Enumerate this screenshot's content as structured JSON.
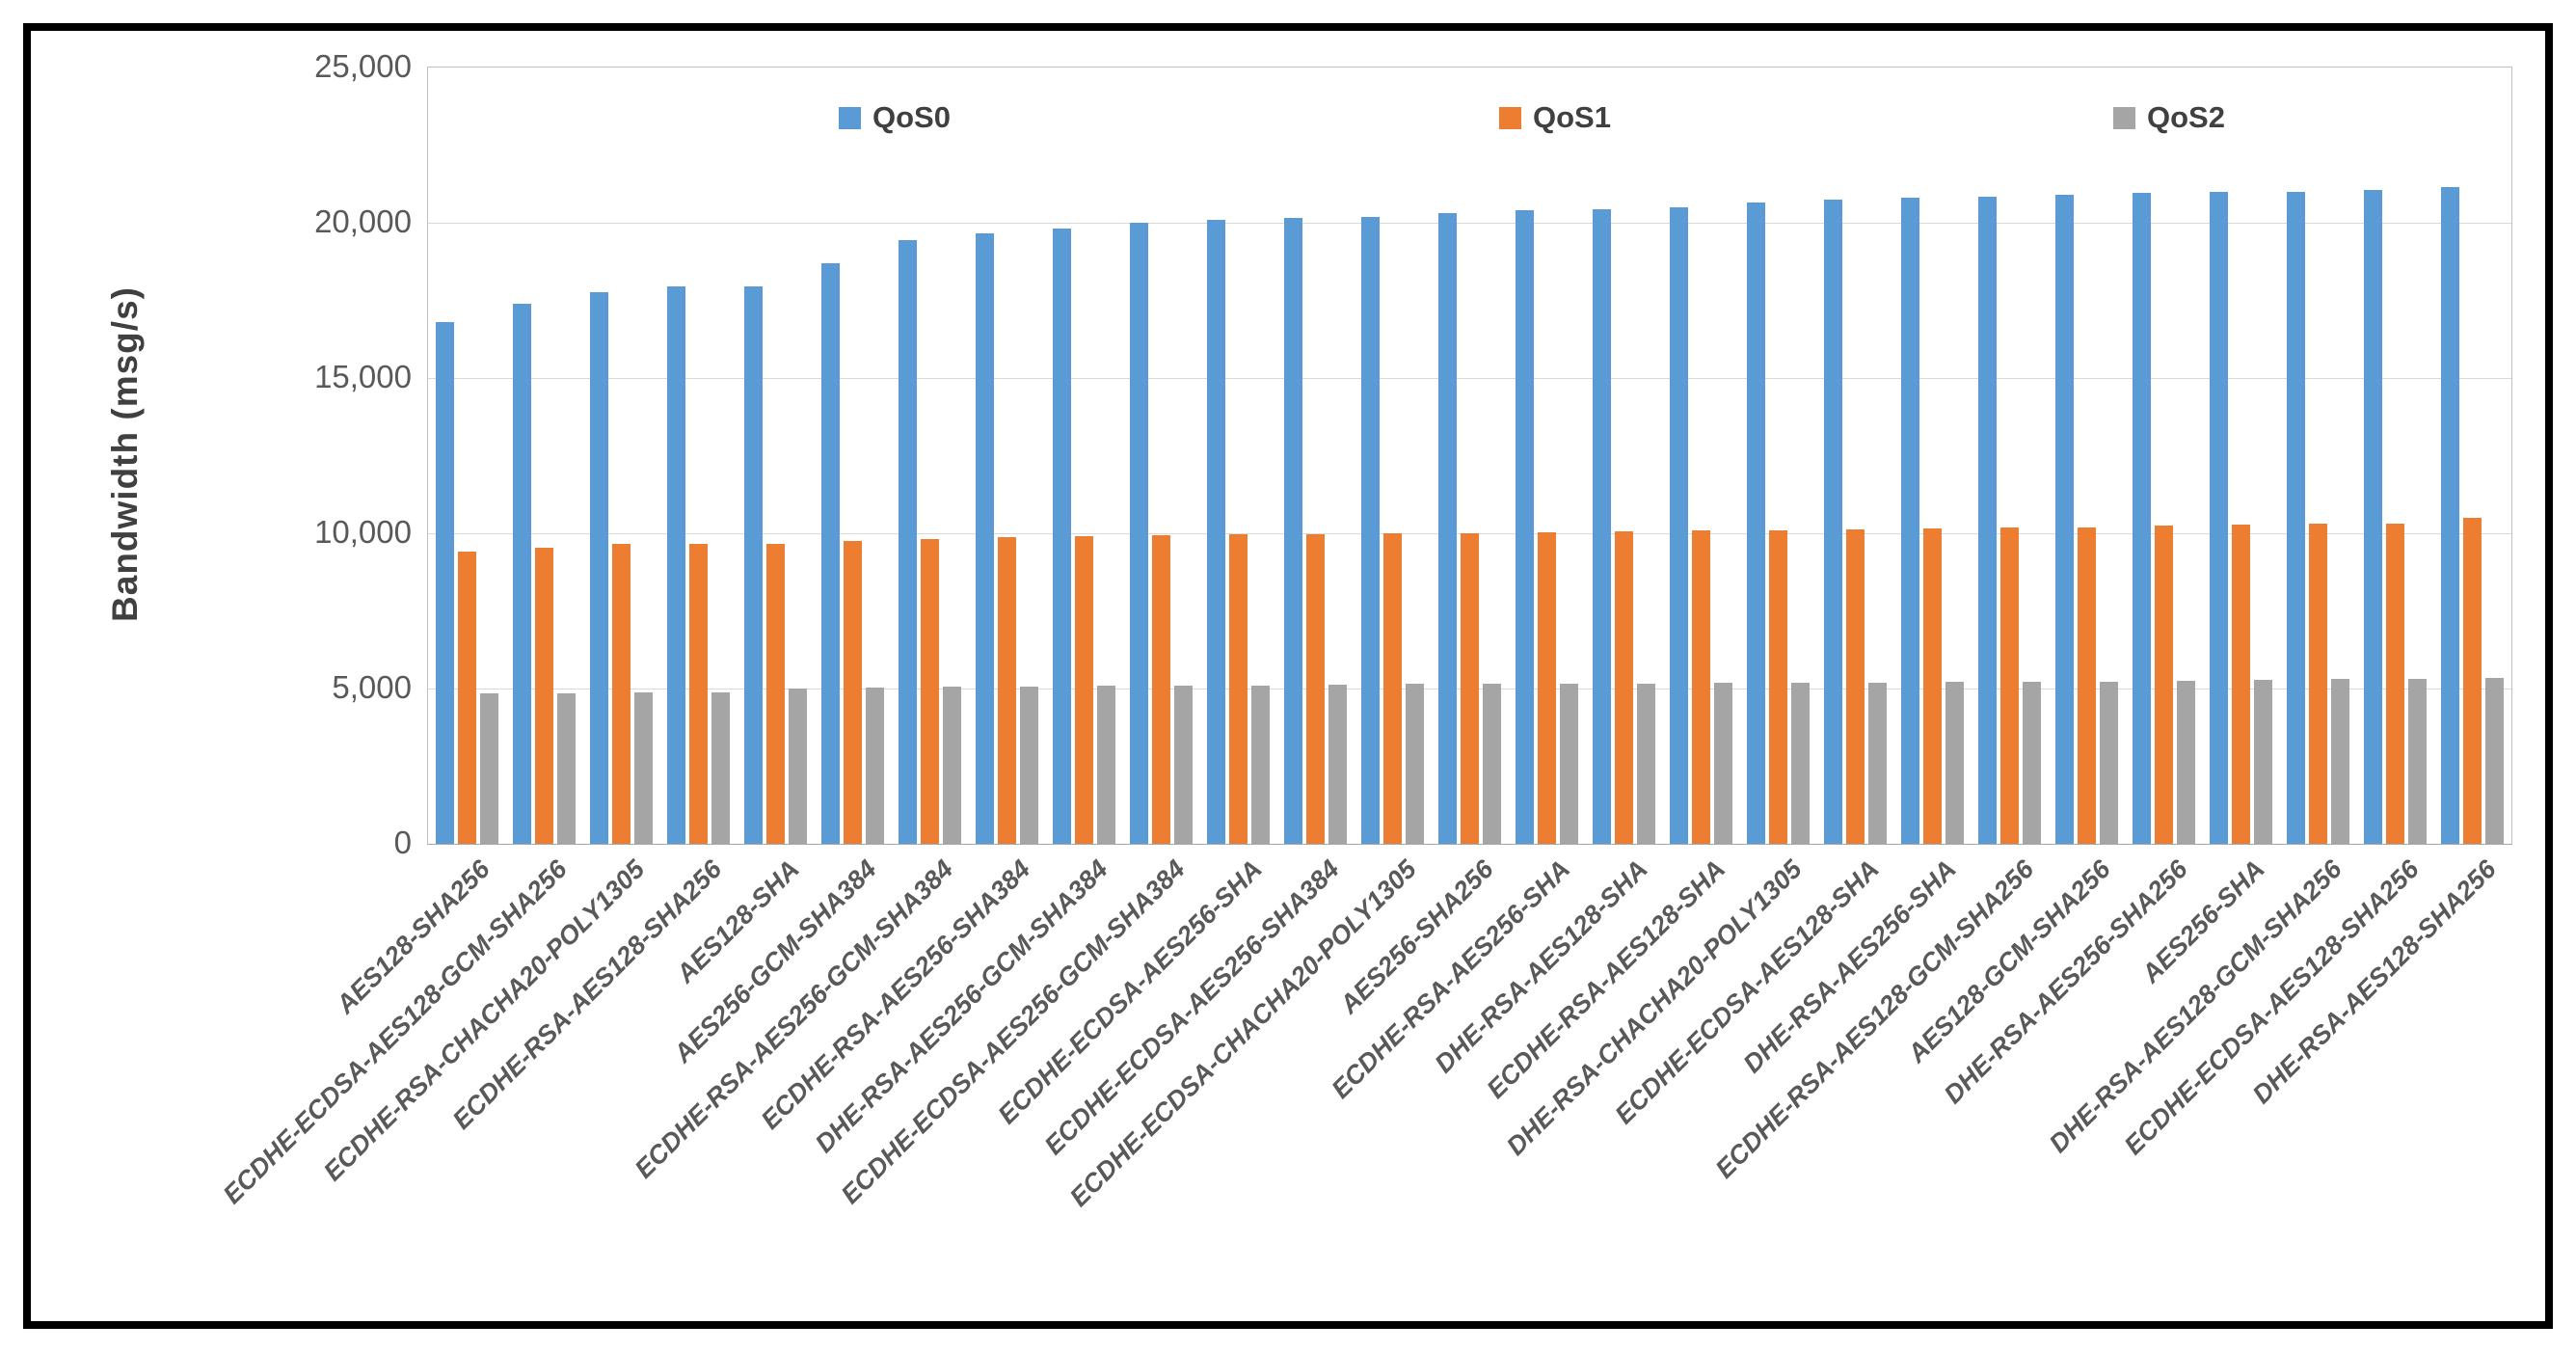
{
  "chart_data": {
    "type": "bar",
    "title": "",
    "xlabel": "",
    "ylabel": "Bandwidth (msg/s)",
    "ylim": [
      0,
      25000
    ],
    "ytick_step": 5000,
    "ytick_labels": [
      "0",
      "5,000",
      "10,000",
      "15,000",
      "20,000",
      "25,000"
    ],
    "grid": true,
    "legend_position": "top-inside-horizontal",
    "categories": [
      "AES128-SHA256",
      "ECDHE-ECDSA-AES128-GCM-SHA256",
      "ECDHE-RSA-CHACHA20-POLY1305",
      "ECDHE-RSA-AES128-SHA256",
      "AES128-SHA",
      "AES256-GCM-SHA384",
      "ECDHE-RSA-AES256-GCM-SHA384",
      "ECDHE-RSA-AES256-SHA384",
      "DHE-RSA-AES256-GCM-SHA384",
      "ECDHE-ECDSA-AES256-GCM-SHA384",
      "ECDHE-ECDSA-AES256-SHA",
      "ECDHE-ECDSA-AES256-SHA384",
      "ECDHE-ECDSA-CHACHA20-POLY1305",
      "AES256-SHA256",
      "ECDHE-RSA-AES256-SHA",
      "DHE-RSA-AES128-SHA",
      "ECDHE-RSA-AES128-SHA",
      "DHE-RSA-CHACHA20-POLY1305",
      "ECDHE-ECDSA-AES128-SHA",
      "DHE-RSA-AES256-SHA",
      "ECDHE-RSA-AES128-GCM-SHA256",
      "AES128-GCM-SHA256",
      "DHE-RSA-AES256-SHA256",
      "AES256-SHA",
      "DHE-RSA-AES128-GCM-SHA256",
      "ECDHE-ECDSA-AES128-SHA256",
      "DHE-RSA-AES128-SHA256"
    ],
    "series": [
      {
        "name": "QoS0",
        "color": "#5B9BD5",
        "values": [
          16800,
          17400,
          17750,
          17950,
          17950,
          18700,
          19450,
          19650,
          19800,
          20000,
          20100,
          20150,
          20200,
          20300,
          20400,
          20450,
          20500,
          20650,
          20750,
          20800,
          20850,
          20900,
          20950,
          21000,
          21000,
          21050,
          21150
        ]
      },
      {
        "name": "QoS1",
        "color": "#ED7D31",
        "values": [
          9400,
          9550,
          9650,
          9660,
          9660,
          9750,
          9800,
          9870,
          9900,
          9940,
          9960,
          9980,
          10000,
          10010,
          10020,
          10060,
          10080,
          10080,
          10120,
          10160,
          10180,
          10200,
          10240,
          10270,
          10300,
          10320,
          10500
        ]
      },
      {
        "name": "QoS2",
        "color": "#A5A5A5",
        "values": [
          4850,
          4860,
          4870,
          4880,
          5000,
          5040,
          5050,
          5060,
          5080,
          5080,
          5090,
          5140,
          5150,
          5160,
          5160,
          5170,
          5180,
          5180,
          5200,
          5210,
          5220,
          5230,
          5260,
          5290,
          5300,
          5320,
          5350
        ]
      }
    ]
  }
}
